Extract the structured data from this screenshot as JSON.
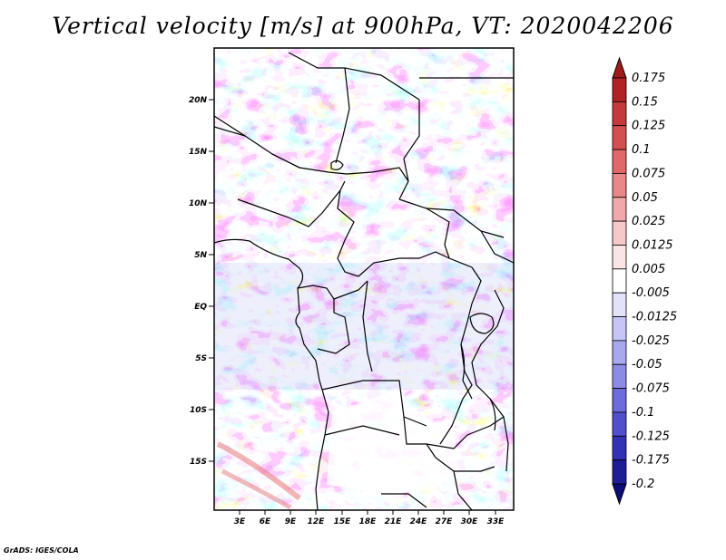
{
  "title": "Vertical velocity [m/s] at 900hPa, VT: 2020042206",
  "footer": "GrADS: IGES/COLA",
  "map": {
    "variable": "Vertical velocity",
    "units": "m/s",
    "level": "900hPa",
    "valid_time": "2020042206",
    "lat_labels": [
      "20N",
      "15N",
      "10N",
      "5N",
      "EQ",
      "5S",
      "10S",
      "15S"
    ],
    "lon_labels": [
      "3E",
      "6E",
      "9E",
      "12E",
      "15E",
      "18E",
      "21E",
      "24E",
      "27E",
      "30E",
      "33E"
    ],
    "lat_range": [
      -20,
      25
    ],
    "lon_range": [
      0,
      35
    ]
  },
  "colorbar": {
    "labels": [
      "0.175",
      "0.15",
      "0.125",
      "0.1",
      "0.075",
      "0.05",
      "0.025",
      "0.0125",
      "0.005",
      "-0.005",
      "-0.0125",
      "-0.025",
      "-0.05",
      "-0.075",
      "-0.1",
      "-0.125",
      "-0.175",
      "-0.2"
    ],
    "colors": [
      "#a01a1a",
      "#b22222",
      "#c43a3a",
      "#d45050",
      "#e06868",
      "#e88888",
      "#f0a8a8",
      "#f6c8c8",
      "#fbe4e4",
      "#ffffff",
      "#e2e2fb",
      "#c6c6f6",
      "#a8a8ee",
      "#8c8ce6",
      "#6c6cdc",
      "#5050cc",
      "#3232b4",
      "#1e1e96",
      "#0c0c7a"
    ]
  },
  "colors": {
    "positive": "#e06060",
    "negative": "#6e6ee0",
    "background": "#ffffff"
  }
}
